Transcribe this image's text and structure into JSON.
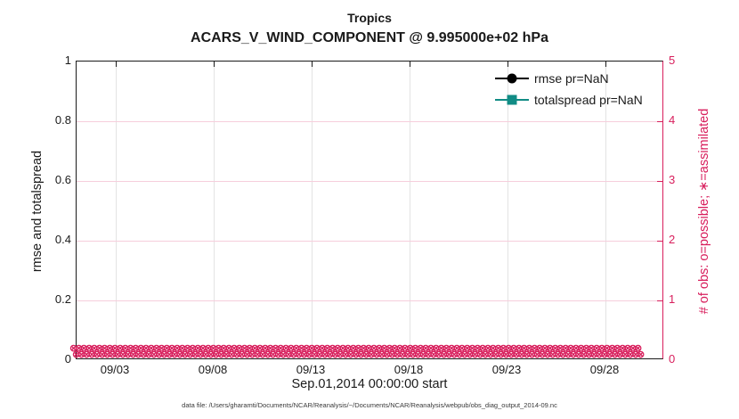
{
  "figure": {
    "title": "Tropics",
    "subtitle": "ACARS_V_WIND_COMPONENT @ 9.995000e+02 hPa",
    "xlabel": "Sep.01,2014 00:00:00 start",
    "ylabel_left": "rmse and totalspread",
    "ylabel_right": "# of obs: o=possible; ∗=assimilated",
    "footer": "data file: /Users/gharamti/Documents/NCAR/Reanalysis/~/Documents/NCAR/Reanalysis/webpub/obs_diag_output_2014-09.nc"
  },
  "legend": {
    "items": [
      {
        "label": "rmse pr=NaN",
        "marker": "filled-circle",
        "color": "#000000"
      },
      {
        "label": "totalspread pr=NaN",
        "marker": "filled-square",
        "color": "#118C85"
      }
    ]
  },
  "colors": {
    "obs_accent": "#D81E5C",
    "obs_gridline": "#F6CEDC",
    "date_gridline": "#E3E3E3",
    "rmse": "#000000",
    "totalspread": "#118C85"
  },
  "chart_data": {
    "type": "line",
    "title": "Tropics",
    "subtitle": "ACARS_V_WIND_COMPONENT @ 9.995000e+02 hPa",
    "xlabel": "Sep.01,2014 00:00:00 start",
    "ylabel_left": "rmse and totalspread",
    "ylabel_right": "# of obs: o=possible; ∗=assimilated",
    "x_range": [
      "2014-09-01 00:00",
      "2014-10-01 00:00"
    ],
    "xtick_labels": [
      "09/03",
      "09/08",
      "09/13",
      "09/18",
      "09/23",
      "09/28"
    ],
    "ylim_left": [
      0,
      1
    ],
    "ytick_values_left": [
      0,
      0.2,
      0.4,
      0.6,
      0.8,
      1
    ],
    "ytick_labels_left": [
      "0",
      "0.2",
      "0.4",
      "0.6",
      "0.8",
      "1"
    ],
    "ylim_right": [
      0,
      5
    ],
    "ytick_values_right": [
      0,
      1,
      2,
      3,
      4,
      5
    ],
    "ytick_labels_right": [
      "0",
      "1",
      "2",
      "3",
      "4",
      "5"
    ],
    "grid": true,
    "legend_position": "upper-right-inside",
    "series": [
      {
        "name": "rmse pr=NaN",
        "axis": "left",
        "marker": "filled-circle",
        "color": "#000000",
        "values": "NaN - no curve plotted"
      },
      {
        "name": "totalspread pr=NaN",
        "axis": "left",
        "marker": "filled-square",
        "color": "#118C85",
        "values": "NaN - no curve plotted"
      },
      {
        "name": "# of possible obs (o)",
        "axis": "right",
        "marker": "o",
        "color": "#D81E5C",
        "constant_value": 0
      },
      {
        "name": "# of assimilated obs (∗)",
        "axis": "right",
        "marker": "∗",
        "color": "#D81E5C",
        "constant_value": 0
      }
    ],
    "obs_marker_glyph": "⊗",
    "obs_marker_rows": 2,
    "obs_markers_per_row": 110
  }
}
